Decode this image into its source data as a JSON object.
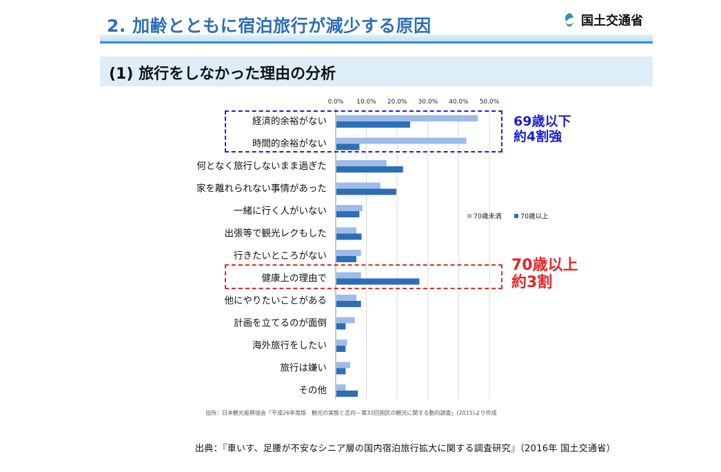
{
  "header": {
    "title": "2. 加齢とともに宿泊旅行が減少する原因",
    "ministry": "国土交通省",
    "section_title": "(1) 旅行をしなかった理由の分析"
  },
  "colors": {
    "under70": "#9dbde6",
    "over70": "#2c6eb8",
    "title_blue": "#2c6fb7",
    "callout_blue": "#1a1fd1",
    "callout_red": "#e32626"
  },
  "callouts": {
    "blue_line1": "69歳以下",
    "blue_line2": "約4割強",
    "red_line1": "70歳以上",
    "red_line2": "約3割"
  },
  "footer": {
    "source": "出所：日本観光振興協会「平成26年度版　観光の実態と志向－第33回国民の観光に関する動向調査」(2015)より作成",
    "citation": "出典：『車いす、足腰が不安なシニア層の国内宿泊旅行拡大に関する調査研究』（2016年 国土交通省）"
  },
  "chart_data": {
    "type": "bar",
    "orientation": "horizontal",
    "categories": [
      "経済的余裕がない",
      "時間的余裕がない",
      "何となく旅行しないまま過ぎた",
      "家を離れられない事情があった",
      "一緒に行く人がいない",
      "出張等で観光レクもした",
      "行きたいところがない",
      "健康上の理由で",
      "他にやりたいことがある",
      "計画を立てるのが面倒",
      "海外旅行をしたい",
      "旅行は嫌い",
      "その他"
    ],
    "series": [
      {
        "name": "70歳未満",
        "values": [
          46.0,
          42.3,
          16.3,
          14.3,
          8.5,
          6.5,
          8.0,
          8.0,
          6.5,
          6.0,
          3.5,
          4.5,
          3.0
        ]
      },
      {
        "name": "70歳以上",
        "values": [
          24.0,
          7.5,
          21.7,
          19.5,
          7.5,
          8.2,
          6.5,
          27.0,
          8.0,
          3.0,
          3.0,
          3.0,
          7.0
        ]
      }
    ],
    "xlim": [
      0,
      50
    ],
    "xticks": [
      "0.0%",
      "10.0%",
      "20.0%",
      "30.0%",
      "40.0%",
      "50.0%"
    ],
    "grid": true,
    "legend_position": "right"
  }
}
